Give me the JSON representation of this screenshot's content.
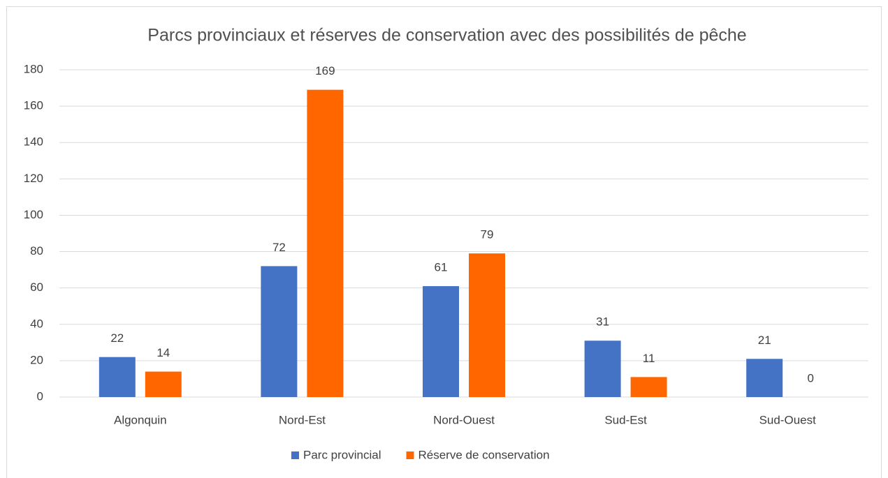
{
  "chart_data": {
    "type": "bar",
    "title": "Parcs provinciaux et réserves de conservation avec des possibilités de pêche",
    "categories": [
      "Algonquin",
      "Nord-Est",
      "Nord-Ouest",
      "Sud-Est",
      "Sud-Ouest"
    ],
    "series": [
      {
        "name": "Parc provincial",
        "color": "#4472c4",
        "values": [
          22,
          72,
          61,
          31,
          21
        ]
      },
      {
        "name": "Réserve de conservation",
        "color": "#ff6600",
        "values": [
          14,
          169,
          79,
          11,
          0
        ]
      }
    ],
    "ylim": [
      0,
      180
    ],
    "yticks": [
      0,
      20,
      40,
      60,
      80,
      100,
      120,
      140,
      160,
      180
    ],
    "grid": true,
    "legend": "bottom"
  }
}
